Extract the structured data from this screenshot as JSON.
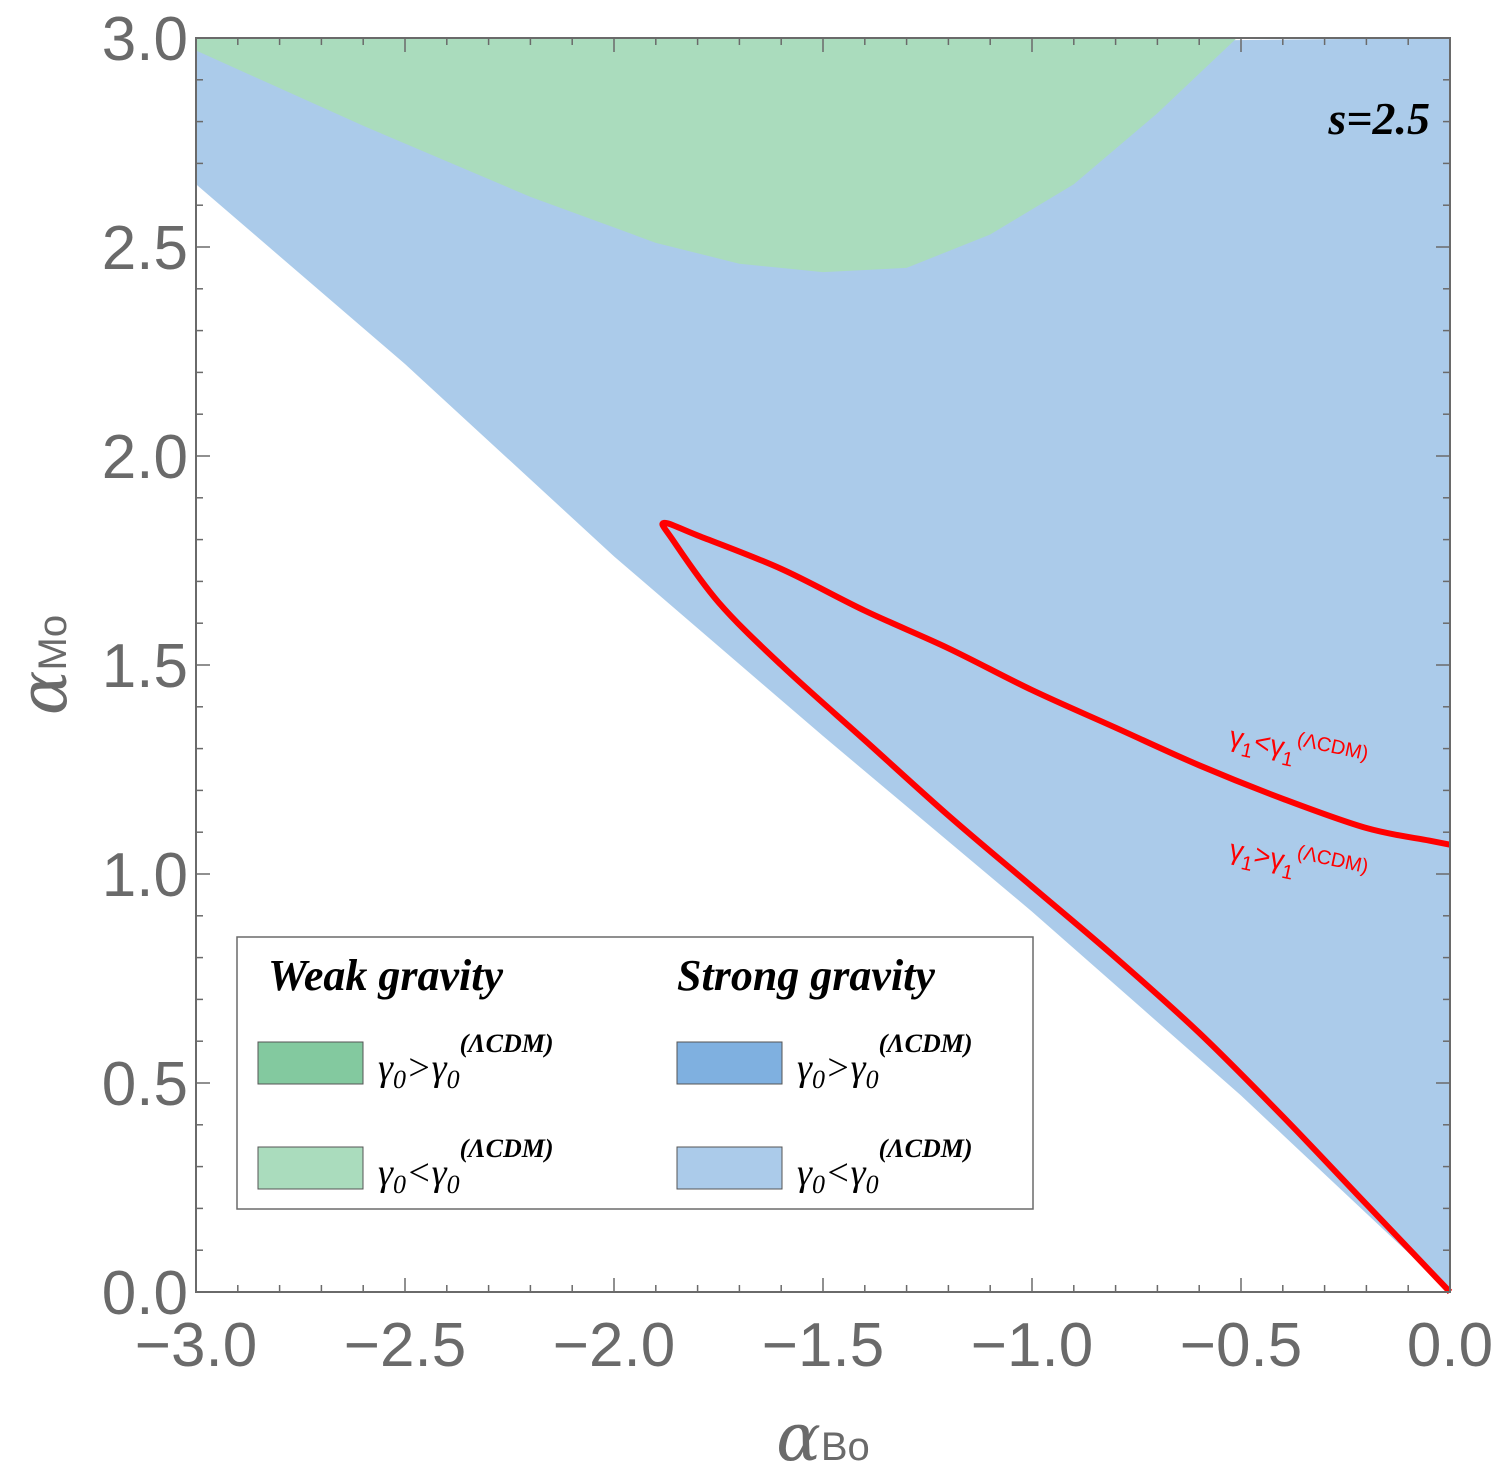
{
  "chart_data": {
    "type": "region",
    "title": "",
    "xlabel": "α",
    "xlabel_sub": "Bo",
    "ylabel": "α",
    "ylabel_sub": "Mo",
    "xlim": [
      -3.0,
      0.0
    ],
    "ylim": [
      0.0,
      3.0
    ],
    "x_ticks": [
      "−3.0",
      "−2.5",
      "−2.0",
      "−1.5",
      "−1.0",
      "−0.5",
      "0.0"
    ],
    "x_tick_values": [
      -3.0,
      -2.5,
      -2.0,
      -1.5,
      -1.0,
      -0.5,
      0.0
    ],
    "y_ticks": [
      "0.0",
      "0.5",
      "1.0",
      "1.5",
      "2.0",
      "2.5",
      "3.0"
    ],
    "y_tick_values": [
      0.0,
      0.5,
      1.0,
      1.5,
      2.0,
      2.5,
      3.0
    ],
    "grid": false,
    "parameter_label": "s=2.5",
    "colors": {
      "weak_gt": "#83c99f",
      "weak_lt": "#aadcbd",
      "strong_gt": "#7fb0e0",
      "strong_lt": "#abcbea",
      "curve": "#ff0000",
      "axis": "#6a6a6a"
    },
    "regions": [
      {
        "name": "Strong gravity, γ0<γ0(ΛCDM)",
        "fill": "strong_lt",
        "lower_boundary": [
          [
            -3.0,
            2.65
          ],
          [
            -2.5,
            2.22
          ],
          [
            -2.0,
            1.76
          ],
          [
            -1.5,
            1.33
          ],
          [
            -1.0,
            0.91
          ],
          [
            -0.5,
            0.47
          ],
          [
            0.0,
            0.0
          ]
        ],
        "upper_boundary": [
          [
            -3.0,
            2.97
          ],
          [
            0.0,
            3.0
          ]
        ]
      },
      {
        "name": "Weak gravity, γ0<γ0(ΛCDM)",
        "fill": "weak_lt",
        "boundary": [
          [
            -3.0,
            2.97
          ],
          [
            -2.6,
            2.79
          ],
          [
            -2.2,
            2.62
          ],
          [
            -1.9,
            2.51
          ],
          [
            -1.7,
            2.46
          ],
          [
            -1.5,
            2.44
          ],
          [
            -1.3,
            2.45
          ],
          [
            -1.1,
            2.53
          ],
          [
            -0.9,
            2.65
          ],
          [
            -0.7,
            2.82
          ],
          [
            -0.51,
            3.0
          ]
        ]
      }
    ],
    "series": [
      {
        "name": "γ1 = γ1(ΛCDM) boundary",
        "points": [
          [
            0.0,
            0.0
          ],
          [
            -0.2,
            0.21
          ],
          [
            -0.4,
            0.42
          ],
          [
            -0.6,
            0.62
          ],
          [
            -0.8,
            0.8
          ],
          [
            -1.0,
            0.97
          ],
          [
            -1.2,
            1.14
          ],
          [
            -1.4,
            1.32
          ],
          [
            -1.6,
            1.5
          ],
          [
            -1.75,
            1.65
          ],
          [
            -1.86,
            1.8
          ],
          [
            -1.88,
            1.84
          ],
          [
            -1.8,
            1.81
          ],
          [
            -1.6,
            1.73
          ],
          [
            -1.4,
            1.63
          ],
          [
            -1.2,
            1.54
          ],
          [
            -1.0,
            1.44
          ],
          [
            -0.8,
            1.35
          ],
          [
            -0.6,
            1.26
          ],
          [
            -0.4,
            1.18
          ],
          [
            -0.2,
            1.11
          ],
          [
            -0.05,
            1.08
          ],
          [
            0.0,
            1.07
          ]
        ]
      }
    ],
    "curve_labels": {
      "upper": {
        "base": "γ",
        "sub1": "1",
        "rel": "<",
        "base2": "γ",
        "sub2": "1",
        "sup": "(ΛCDM)"
      },
      "lower": {
        "base": "γ",
        "sub1": "1",
        "rel": ">",
        "base2": "γ",
        "sub2": "1",
        "sup": "(ΛCDM)"
      }
    },
    "legend": {
      "position": "bottom-left",
      "weak_heading": "Weak gravity",
      "strong_heading": "Strong gravity",
      "entries": [
        {
          "group": "weak",
          "swatch": "weak_gt",
          "base": "γ",
          "sub": "0",
          "rel": ">",
          "base2": "γ",
          "sub2": "0",
          "sup": "(ΛCDM)"
        },
        {
          "group": "weak",
          "swatch": "weak_lt",
          "base": "γ",
          "sub": "0",
          "rel": "<",
          "base2": "γ",
          "sub2": "0",
          "sup": "(ΛCDM)"
        },
        {
          "group": "strong",
          "swatch": "strong_gt",
          "base": "γ",
          "sub": "0",
          "rel": ">",
          "base2": "γ",
          "sub2": "0",
          "sup": "(ΛCDM)"
        },
        {
          "group": "strong",
          "swatch": "strong_lt",
          "base": "γ",
          "sub": "0",
          "rel": "<",
          "base2": "γ",
          "sub2": "0",
          "sup": "(ΛCDM)"
        }
      ]
    }
  }
}
